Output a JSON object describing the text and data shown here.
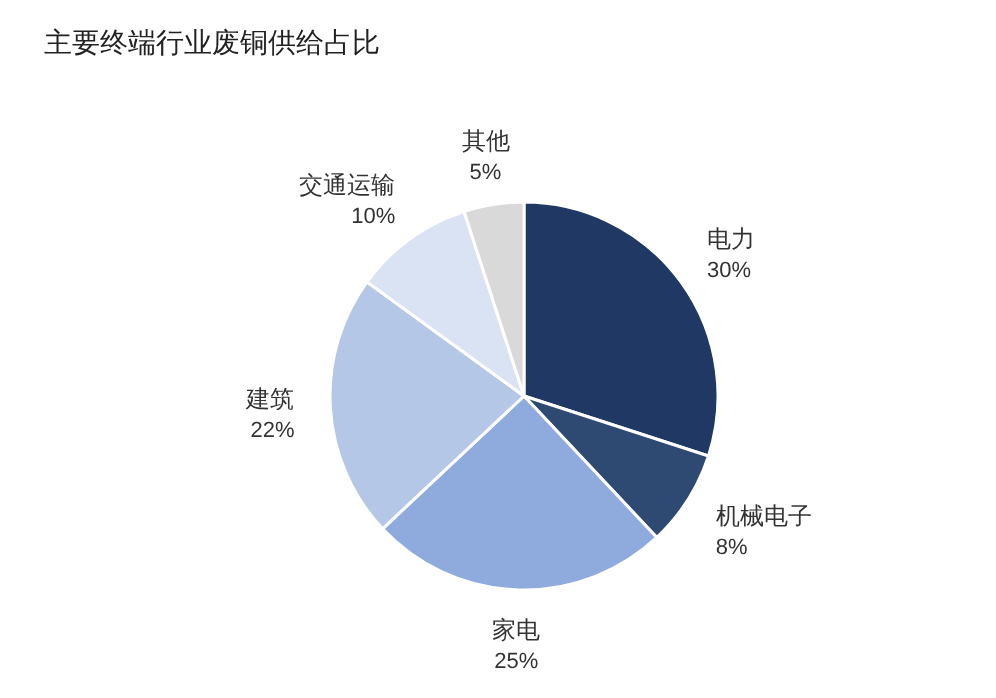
{
  "chart_data": {
    "type": "pie",
    "title": "主要终端行业废铜供给占比",
    "categories": [
      "电力",
      "机械电子",
      "家电",
      "建筑",
      "交通运输",
      "其他"
    ],
    "values": [
      30,
      8,
      25,
      22,
      10,
      5
    ],
    "value_labels": [
      "30%",
      "8%",
      "25%",
      "22%",
      "10%",
      "5%"
    ],
    "colors": [
      "#1f3864",
      "#2e4a72",
      "#8faadc",
      "#b4c7e7",
      "#dae3f3",
      "#d9d9d9"
    ]
  }
}
